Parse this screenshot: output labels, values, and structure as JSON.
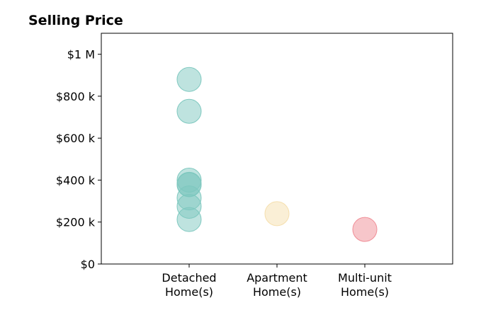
{
  "chart_data": {
    "type": "scatter",
    "title": "Selling Price",
    "categories": [
      [
        "Detached",
        "Home(s)"
      ],
      [
        "Apartment",
        "Home(s)"
      ],
      [
        "Multi-unit",
        "Home(s)"
      ]
    ],
    "colors": [
      "#7ec8bf",
      "#f5dfae",
      "#f08d96"
    ],
    "ylim": [
      0,
      1100000
    ],
    "yticks": [
      0,
      200000,
      400000,
      600000,
      800000,
      1000000
    ],
    "ytick_labels": [
      "$0",
      "$200 k",
      "$400 k",
      "$600 k",
      "$800 k",
      "$1 M"
    ],
    "grid": false,
    "legend": "none",
    "points": [
      {
        "category": 0,
        "y": 880000
      },
      {
        "category": 0,
        "y": 728000
      },
      {
        "category": 0,
        "y": 400000
      },
      {
        "category": 0,
        "y": 380000
      },
      {
        "category": 0,
        "y": 378000
      },
      {
        "category": 0,
        "y": 315000
      },
      {
        "category": 0,
        "y": 275000
      },
      {
        "category": 0,
        "y": 212000
      },
      {
        "category": 1,
        "y": 240000
      },
      {
        "category": 2,
        "y": 165000
      }
    ]
  }
}
